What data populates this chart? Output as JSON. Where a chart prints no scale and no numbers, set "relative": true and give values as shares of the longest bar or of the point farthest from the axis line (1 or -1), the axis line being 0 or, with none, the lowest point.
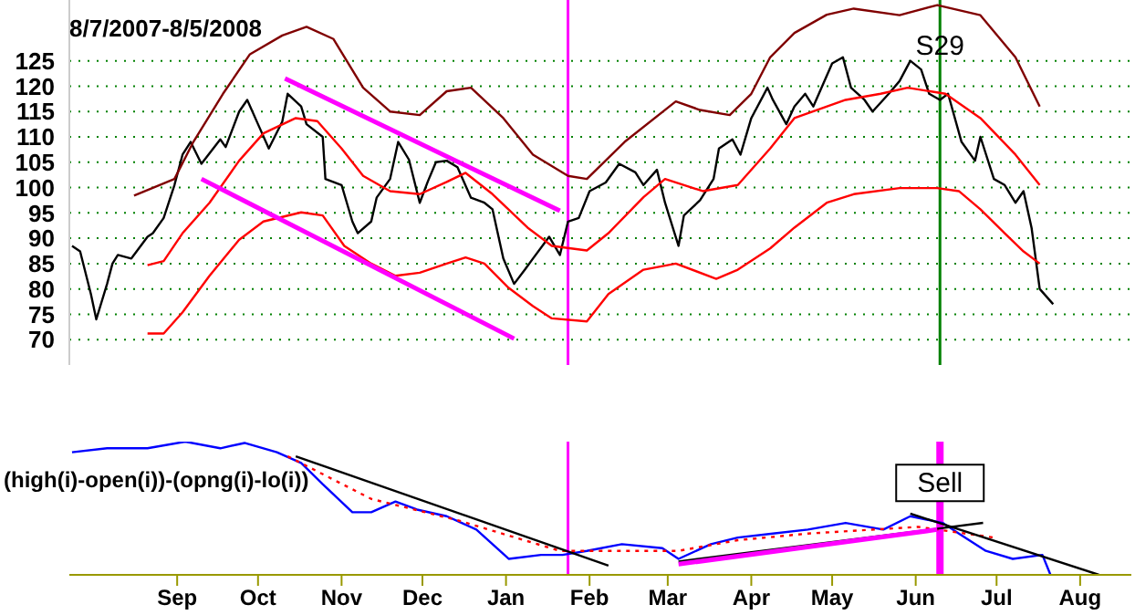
{
  "chart_data": [
    {
      "type": "line",
      "title": "8/7/2007-8/5/2008",
      "xlim": [
        "2007-08-06",
        "2008-09-03"
      ],
      "ylim": [
        65,
        137
      ],
      "yticks": [
        70,
        75,
        80,
        85,
        90,
        95,
        100,
        105,
        110,
        115,
        120,
        125
      ],
      "grid": "y",
      "tick_labels": "y",
      "marker": "none",
      "series": [
        {
          "color": "#000000",
          "x": [
            "2007-08-07",
            "2007-08-10",
            "2007-08-14",
            "2007-08-16",
            "2007-08-20",
            "2007-08-22",
            "2007-08-24",
            "2007-08-29",
            "2007-09-04",
            "2007-09-06",
            "2007-09-10",
            "2007-09-14",
            "2007-09-17",
            "2007-09-20",
            "2007-09-24",
            "2007-10-01",
            "2007-10-03",
            "2007-10-08",
            "2007-10-11",
            "2007-10-15",
            "2007-10-19",
            "2007-10-24",
            "2007-10-26",
            "2007-10-31",
            "2007-11-02",
            "2007-11-08",
            "2007-11-09",
            "2007-11-15",
            "2007-11-19",
            "2007-11-21",
            "2007-11-26",
            "2007-11-28",
            "2007-12-03",
            "2007-12-06",
            "2007-12-10",
            "2007-12-14",
            "2007-12-17",
            "2007-12-20",
            "2007-12-24",
            "2007-12-28",
            "2008-01-02",
            "2008-01-07",
            "2008-01-10",
            "2008-01-14",
            "2008-01-18",
            "2008-01-22",
            "2008-01-25",
            "2008-01-31",
            "2008-02-04",
            "2008-02-07",
            "2008-02-11",
            "2008-02-15",
            "2008-02-21",
            "2008-02-26",
            "2008-03-03",
            "2008-03-06",
            "2008-03-11",
            "2008-03-14",
            "2008-03-19",
            "2008-03-21",
            "2008-03-27",
            "2008-04-01",
            "2008-04-03",
            "2008-04-08",
            "2008-04-11",
            "2008-04-15",
            "2008-04-21",
            "2008-04-23",
            "2008-04-28",
            "2008-05-01",
            "2008-05-05",
            "2008-05-08",
            "2008-05-15",
            "2008-05-19",
            "2008-05-22",
            "2008-05-27",
            "2008-05-30",
            "2008-06-05",
            "2008-06-09",
            "2008-06-13",
            "2008-06-17",
            "2008-06-20",
            "2008-06-24",
            "2008-06-27",
            "2008-07-02",
            "2008-07-07",
            "2008-07-09",
            "2008-07-14",
            "2008-07-18",
            "2008-07-22",
            "2008-07-25",
            "2008-07-28",
            "2008-07-31",
            "2008-08-05"
          ],
          "values": [
            88.5,
            87.4,
            79,
            74,
            81,
            85,
            86.7,
            86,
            90.3,
            91,
            94,
            100.5,
            106.5,
            109,
            104.7,
            109.5,
            108,
            115,
            117.3,
            112.5,
            107.7,
            113,
            118.5,
            116,
            112.5,
            110,
            101.7,
            100.5,
            93.3,
            91,
            93.3,
            98,
            101.7,
            109,
            105.5,
            97,
            101.2,
            105,
            105.3,
            104,
            98,
            97,
            95.7,
            86,
            81,
            83.8,
            86,
            90.3,
            86.7,
            93.3,
            94,
            99.3,
            101,
            104.7,
            103,
            100.5,
            103.5,
            97,
            88.5,
            94.5,
            97.5,
            101.7,
            107.7,
            109.5,
            106.5,
            113.7,
            119.7,
            117.3,
            112.5,
            116,
            118.5,
            116,
            124.5,
            125.7,
            119.7,
            117.3,
            115,
            118.5,
            121,
            125,
            123.3,
            118.5,
            117.3,
            118.5,
            109,
            105.3,
            110,
            101.7,
            100.5,
            97,
            99.3,
            92,
            80,
            77
          ]
        },
        {
          "color": "#800000",
          "x": [
            "2007-08-30",
            "2007-09-14",
            "2007-09-21",
            "2007-10-02",
            "2007-10-12",
            "2007-10-24",
            "2007-11-02",
            "2007-11-12",
            "2007-11-23",
            "2007-12-03",
            "2007-12-14",
            "2007-12-24",
            "2008-01-02",
            "2008-01-14",
            "2008-01-25",
            "2008-02-07",
            "2008-02-14",
            "2008-02-28",
            "2008-03-18",
            "2008-03-27",
            "2008-04-07",
            "2008-04-15",
            "2008-04-22",
            "2008-05-01",
            "2008-05-13",
            "2008-05-23",
            "2008-06-09",
            "2008-06-23",
            "2008-07-09",
            "2008-07-22",
            "2008-07-31"
          ],
          "values": [
            98.4,
            101.7,
            109,
            118.5,
            126.3,
            130,
            131.7,
            129.3,
            119.7,
            115,
            114.3,
            119,
            119.7,
            113.7,
            106.5,
            102.3,
            101.7,
            109,
            117,
            115.3,
            114.3,
            118.5,
            125.7,
            130.5,
            134.1,
            135.3,
            134,
            136,
            134,
            125.7,
            116
          ]
        },
        {
          "color": "#ff0000",
          "x": [
            "2007-09-04",
            "2007-09-10",
            "2007-09-17",
            "2007-09-27",
            "2007-10-08",
            "2007-10-17",
            "2007-10-29",
            "2007-11-06",
            "2007-11-15",
            "2007-11-23",
            "2007-12-03",
            "2007-12-14",
            "2007-12-24",
            "2007-12-31",
            "2008-01-10",
            "2008-01-23",
            "2008-02-01",
            "2008-02-14",
            "2008-02-22",
            "2008-03-06",
            "2008-03-14",
            "2008-03-28",
            "2008-04-10",
            "2008-04-22",
            "2008-05-01",
            "2008-05-20",
            "2008-06-02",
            "2008-06-12",
            "2008-06-26",
            "2008-07-09",
            "2008-07-22",
            "2008-07-31"
          ],
          "values": [
            84.7,
            85.5,
            91,
            97,
            105.3,
            110.7,
            113.7,
            113.1,
            107.7,
            102.3,
            99.3,
            98.7,
            101.1,
            102.9,
            98.7,
            92.1,
            88.5,
            87.6,
            91,
            98.1,
            101.7,
            99.3,
            100.5,
            107.7,
            113.7,
            117.3,
            118.5,
            119.7,
            118.5,
            113.7,
            106.5,
            100.5
          ]
        },
        {
          "color": "#ff0000",
          "x": [
            "2007-09-04",
            "2007-09-10",
            "2007-09-17",
            "2007-09-27",
            "2007-10-08",
            "2007-10-17",
            "2007-10-31",
            "2007-11-08",
            "2007-11-16",
            "2007-11-26",
            "2007-12-05",
            "2007-12-14",
            "2007-12-24",
            "2007-12-31",
            "2008-01-07",
            "2008-01-16",
            "2008-01-25",
            "2008-02-01",
            "2008-02-14",
            "2008-02-22",
            "2008-03-06",
            "2008-03-18",
            "2008-04-02",
            "2008-04-10",
            "2008-04-22",
            "2008-05-01",
            "2008-05-13",
            "2008-05-23",
            "2008-06-09",
            "2008-06-23",
            "2008-07-01",
            "2008-07-09",
            "2008-07-18",
            "2008-07-25",
            "2008-07-31"
          ],
          "values": [
            71.2,
            71.2,
            75.4,
            82.6,
            89.7,
            93.3,
            95.1,
            94.5,
            88.5,
            85,
            82.6,
            83.2,
            85,
            86.2,
            85,
            80.2,
            76.6,
            74.2,
            73.6,
            79,
            83.8,
            85,
            82,
            83.8,
            88,
            92.1,
            97,
            98.7,
            99.9,
            99.9,
            99.3,
            95.7,
            91,
            87.4,
            85
          ]
        },
        {
          "color": "#ff00ff",
          "x": [
            "2007-10-25",
            "2008-02-04"
          ],
          "values": [
            121.5,
            95.4
          ]
        },
        {
          "color": "#ff00ff",
          "x": [
            "2007-09-24",
            "2008-01-18"
          ],
          "values": [
            101.7,
            70.2
          ]
        }
      ],
      "ref_lines": [
        {
          "axis": "x",
          "value": "2008-02-07",
          "color": "#ff00ff"
        },
        {
          "axis": "x",
          "value": "2008-06-24",
          "color": "#008000"
        }
      ],
      "annotations": [
        {
          "text": "S29",
          "x": "2008-06-24",
          "y": 128
        }
      ]
    },
    {
      "type": "line",
      "title": "(high(i)-open(i))-(opng(i)-lo(i))",
      "relative": true,
      "xlim": [
        "2007-08-06",
        "2008-09-03"
      ],
      "tick_labels": "x",
      "marker": "none",
      "xticks": [
        {
          "value": "2007-09-15",
          "label": "Sep"
        },
        {
          "value": "2007-10-15",
          "label": "Oct"
        },
        {
          "value": "2007-11-15",
          "label": "Nov"
        },
        {
          "value": "2007-12-15",
          "label": "Dec"
        },
        {
          "value": "2008-01-15",
          "label": "Jan"
        },
        {
          "value": "2008-02-15",
          "label": "Feb"
        },
        {
          "value": "2008-03-15",
          "label": "Mar"
        },
        {
          "value": "2008-04-15",
          "label": "Apr"
        },
        {
          "value": "2008-05-15",
          "label": "May"
        },
        {
          "value": "2008-06-15",
          "label": "Jun"
        },
        {
          "value": "2008-07-15",
          "label": "Jul"
        },
        {
          "value": "2008-08-15",
          "label": "Aug"
        }
      ],
      "series": [
        {
          "color": "#0000ff",
          "x": [
            "2007-08-07",
            "2007-08-20",
            "2007-09-04",
            "2007-09-18",
            "2007-10-01",
            "2007-10-10",
            "2007-10-22",
            "2007-10-31",
            "2007-11-08",
            "2007-11-19",
            "2007-11-26",
            "2007-12-05",
            "2007-12-13",
            "2007-12-24",
            "2008-01-04",
            "2008-01-16",
            "2008-01-28",
            "2008-02-05",
            "2008-02-14",
            "2008-02-27",
            "2008-03-13",
            "2008-03-19",
            "2008-03-31",
            "2008-04-10",
            "2008-04-23",
            "2008-05-06",
            "2008-05-20",
            "2008-06-03",
            "2008-06-13",
            "2008-06-25",
            "2008-07-01",
            "2008-07-11",
            "2008-07-21",
            "2008-08-01",
            "2008-08-04"
          ],
          "values": [
            0.92,
            0.95,
            0.95,
            1,
            0.95,
            0.99,
            0.92,
            0.84,
            0.68,
            0.47,
            0.47,
            0.55,
            0.49,
            0.44,
            0.34,
            0.12,
            0.15,
            0.15,
            0.18,
            0.23,
            0.2,
            0.12,
            0.23,
            0.28,
            0.31,
            0.34,
            0.39,
            0.34,
            0.44,
            0.39,
            0.31,
            0.18,
            0.12,
            0.15,
            0
          ]
        },
        {
          "color": "#ff0000",
          "line_style": "dotted",
          "x": [
            "2007-10-26",
            "2007-11-26",
            "2007-12-28",
            "2008-02-04",
            "2008-02-25",
            "2008-03-19",
            "2008-04-10",
            "2008-05-06",
            "2008-06-16",
            "2008-07-14"
          ],
          "values": [
            0.89,
            0.57,
            0.41,
            0.18,
            0.18,
            0.18,
            0.26,
            0.31,
            0.36,
            0.28
          ]
        },
        {
          "color": "#000000",
          "x": [
            "2007-10-29",
            "2008-02-22"
          ],
          "values": [
            0.89,
            0.07
          ]
        },
        {
          "color": "#000000",
          "x": [
            "2008-03-19",
            "2008-07-10"
          ],
          "values": [
            0.1,
            0.39
          ]
        },
        {
          "color": "#000000",
          "x": [
            "2008-06-13",
            "2008-08-22"
          ],
          "values": [
            0.46,
            0
          ]
        },
        {
          "color": "#ff00ff",
          "x": [
            "2008-03-19",
            "2008-06-23"
          ],
          "values": [
            0.08,
            0.34
          ]
        }
      ],
      "ref_lines": [
        {
          "axis": "x",
          "value": "2008-02-07",
          "color": "#ff00ff"
        },
        {
          "axis": "x",
          "value": "2008-06-24",
          "color": "#ff00ff"
        }
      ],
      "annotations": [
        {
          "text": "Sell",
          "x": "2008-06-24",
          "y": 0.69
        }
      ]
    }
  ]
}
